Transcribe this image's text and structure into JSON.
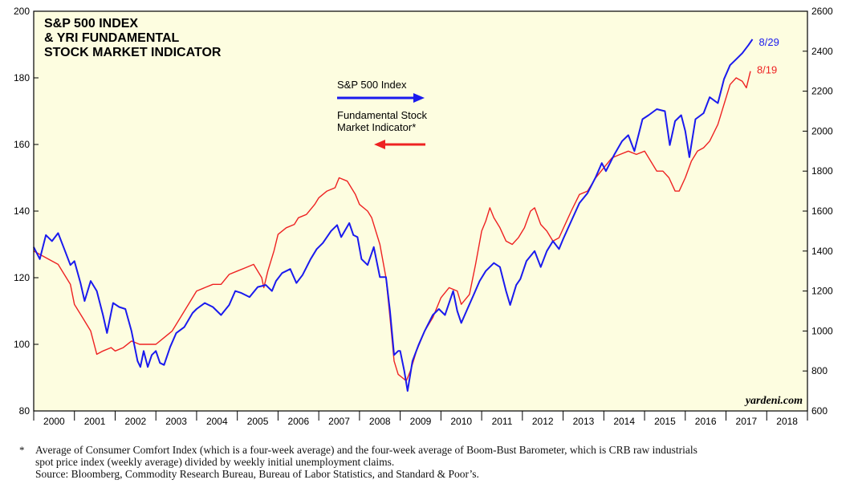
{
  "chart_data": {
    "type": "line",
    "title_lines": [
      "S&P 500 INDEX",
      "& YRI FUNDAMENTAL",
      "STOCK MARKET INDICATOR"
    ],
    "left_axis": {
      "ylim": [
        80,
        200
      ],
      "ticks": [
        80,
        100,
        120,
        140,
        160,
        180,
        200
      ]
    },
    "right_axis": {
      "ylim": [
        600,
        2600
      ],
      "ticks": [
        600,
        800,
        1000,
        1200,
        1400,
        1600,
        1800,
        2000,
        2200,
        2400,
        2600
      ]
    },
    "xlim": [
      2000,
      2019
    ],
    "x_tick_labels": [
      "2000",
      "2001",
      "2002",
      "2003",
      "2004",
      "2005",
      "2006",
      "2007",
      "2008",
      "2009",
      "2010",
      "2011",
      "2012",
      "2013",
      "2014",
      "2015",
      "2016",
      "2017",
      "2018"
    ],
    "legend": {
      "sp500_label": "S&P 500 Index",
      "fsmi_label_line1": "Fundamental Stock",
      "fsmi_label_line2": "Market Indicator*"
    },
    "watermark": "yardeni.com",
    "series": [
      {
        "name": "S&P 500 Index",
        "axis": "right",
        "color": "#1a1aee",
        "end_label": "8/29",
        "points": [
          [
            2000.0,
            1420
          ],
          [
            2000.15,
            1360
          ],
          [
            2000.3,
            1480
          ],
          [
            2000.45,
            1450
          ],
          [
            2000.6,
            1490
          ],
          [
            2000.75,
            1410
          ],
          [
            2000.9,
            1330
          ],
          [
            2001.0,
            1350
          ],
          [
            2001.15,
            1240
          ],
          [
            2001.25,
            1150
          ],
          [
            2001.4,
            1250
          ],
          [
            2001.55,
            1200
          ],
          [
            2001.7,
            1080
          ],
          [
            2001.8,
            990
          ],
          [
            2001.95,
            1140
          ],
          [
            2002.1,
            1120
          ],
          [
            2002.25,
            1110
          ],
          [
            2002.4,
            1000
          ],
          [
            2002.55,
            850
          ],
          [
            2002.62,
            820
          ],
          [
            2002.7,
            900
          ],
          [
            2002.8,
            820
          ],
          [
            2002.9,
            880
          ],
          [
            2003.0,
            900
          ],
          [
            2003.1,
            840
          ],
          [
            2003.2,
            830
          ],
          [
            2003.35,
            920
          ],
          [
            2003.5,
            990
          ],
          [
            2003.7,
            1020
          ],
          [
            2003.9,
            1090
          ],
          [
            2004.0,
            1110
          ],
          [
            2004.2,
            1140
          ],
          [
            2004.4,
            1120
          ],
          [
            2004.6,
            1080
          ],
          [
            2004.8,
            1130
          ],
          [
            2004.95,
            1200
          ],
          [
            2005.1,
            1190
          ],
          [
            2005.3,
            1170
          ],
          [
            2005.5,
            1220
          ],
          [
            2005.7,
            1230
          ],
          [
            2005.85,
            1200
          ],
          [
            2005.95,
            1250
          ],
          [
            2006.1,
            1290
          ],
          [
            2006.3,
            1310
          ],
          [
            2006.45,
            1240
          ],
          [
            2006.6,
            1280
          ],
          [
            2006.8,
            1360
          ],
          [
            2006.95,
            1410
          ],
          [
            2007.1,
            1440
          ],
          [
            2007.3,
            1500
          ],
          [
            2007.45,
            1530
          ],
          [
            2007.55,
            1470
          ],
          [
            2007.75,
            1540
          ],
          [
            2007.85,
            1480
          ],
          [
            2007.95,
            1470
          ],
          [
            2008.05,
            1360
          ],
          [
            2008.2,
            1330
          ],
          [
            2008.35,
            1420
          ],
          [
            2008.5,
            1270
          ],
          [
            2008.65,
            1270
          ],
          [
            2008.75,
            1100
          ],
          [
            2008.85,
            880
          ],
          [
            2008.95,
            900
          ],
          [
            2009.0,
            900
          ],
          [
            2009.1,
            800
          ],
          [
            2009.18,
            700
          ],
          [
            2009.3,
            850
          ],
          [
            2009.45,
            930
          ],
          [
            2009.6,
            1000
          ],
          [
            2009.8,
            1080
          ],
          [
            2009.95,
            1110
          ],
          [
            2010.1,
            1080
          ],
          [
            2010.3,
            1200
          ],
          [
            2010.4,
            1100
          ],
          [
            2010.5,
            1040
          ],
          [
            2010.65,
            1110
          ],
          [
            2010.8,
            1180
          ],
          [
            2010.95,
            1250
          ],
          [
            2011.1,
            1300
          ],
          [
            2011.3,
            1340
          ],
          [
            2011.45,
            1320
          ],
          [
            2011.6,
            1200
          ],
          [
            2011.7,
            1130
          ],
          [
            2011.85,
            1230
          ],
          [
            2011.95,
            1260
          ],
          [
            2012.1,
            1350
          ],
          [
            2012.3,
            1400
          ],
          [
            2012.45,
            1320
          ],
          [
            2012.6,
            1400
          ],
          [
            2012.75,
            1450
          ],
          [
            2012.9,
            1410
          ],
          [
            2013.0,
            1460
          ],
          [
            2013.2,
            1550
          ],
          [
            2013.4,
            1640
          ],
          [
            2013.6,
            1690
          ],
          [
            2013.8,
            1770
          ],
          [
            2013.95,
            1840
          ],
          [
            2014.05,
            1800
          ],
          [
            2014.25,
            1880
          ],
          [
            2014.45,
            1950
          ],
          [
            2014.6,
            1980
          ],
          [
            2014.75,
            1900
          ],
          [
            2014.95,
            2060
          ],
          [
            2015.1,
            2080
          ],
          [
            2015.3,
            2110
          ],
          [
            2015.5,
            2100
          ],
          [
            2015.62,
            1930
          ],
          [
            2015.75,
            2050
          ],
          [
            2015.9,
            2080
          ],
          [
            2016.0,
            2000
          ],
          [
            2016.1,
            1870
          ],
          [
            2016.25,
            2060
          ],
          [
            2016.45,
            2090
          ],
          [
            2016.6,
            2170
          ],
          [
            2016.8,
            2140
          ],
          [
            2016.95,
            2260
          ],
          [
            2017.1,
            2330
          ],
          [
            2017.25,
            2360
          ],
          [
            2017.4,
            2390
          ],
          [
            2017.55,
            2430
          ],
          [
            2017.65,
            2460
          ]
        ]
      },
      {
        "name": "Fundamental Stock Market Indicator",
        "axis": "left",
        "color": "#ee2222",
        "end_label": "8/19",
        "points": [
          [
            2000.0,
            128
          ],
          [
            2000.3,
            126
          ],
          [
            2000.6,
            124
          ],
          [
            2000.9,
            118
          ],
          [
            2001.0,
            112
          ],
          [
            2001.2,
            108
          ],
          [
            2001.4,
            104
          ],
          [
            2001.55,
            97
          ],
          [
            2001.7,
            98
          ],
          [
            2001.9,
            99
          ],
          [
            2002.0,
            98
          ],
          [
            2002.2,
            99
          ],
          [
            2002.4,
            101
          ],
          [
            2002.6,
            100
          ],
          [
            2002.8,
            100
          ],
          [
            2003.0,
            100
          ],
          [
            2003.2,
            102
          ],
          [
            2003.4,
            104
          ],
          [
            2003.6,
            108
          ],
          [
            2003.8,
            112
          ],
          [
            2004.0,
            116
          ],
          [
            2004.2,
            117
          ],
          [
            2004.4,
            118
          ],
          [
            2004.6,
            118
          ],
          [
            2004.8,
            121
          ],
          [
            2005.0,
            122
          ],
          [
            2005.2,
            123
          ],
          [
            2005.4,
            124
          ],
          [
            2005.5,
            122
          ],
          [
            2005.6,
            120
          ],
          [
            2005.65,
            117
          ],
          [
            2005.75,
            122
          ],
          [
            2005.9,
            128
          ],
          [
            2006.0,
            133
          ],
          [
            2006.2,
            135
          ],
          [
            2006.4,
            136
          ],
          [
            2006.5,
            138
          ],
          [
            2006.7,
            139
          ],
          [
            2006.9,
            142
          ],
          [
            2007.0,
            144
          ],
          [
            2007.2,
            146
          ],
          [
            2007.4,
            147
          ],
          [
            2007.5,
            150
          ],
          [
            2007.7,
            149
          ],
          [
            2007.9,
            145
          ],
          [
            2008.0,
            142
          ],
          [
            2008.2,
            140
          ],
          [
            2008.3,
            138
          ],
          [
            2008.5,
            130
          ],
          [
            2008.65,
            120
          ],
          [
            2008.75,
            108
          ],
          [
            2008.85,
            95
          ],
          [
            2008.95,
            91
          ],
          [
            2009.05,
            90
          ],
          [
            2009.15,
            89
          ],
          [
            2009.25,
            92
          ],
          [
            2009.4,
            98
          ],
          [
            2009.6,
            104
          ],
          [
            2009.8,
            108
          ],
          [
            2010.0,
            114
          ],
          [
            2010.2,
            117
          ],
          [
            2010.4,
            116
          ],
          [
            2010.5,
            112
          ],
          [
            2010.7,
            115
          ],
          [
            2010.85,
            124
          ],
          [
            2011.0,
            134
          ],
          [
            2011.1,
            137
          ],
          [
            2011.2,
            141
          ],
          [
            2011.3,
            138
          ],
          [
            2011.45,
            135
          ],
          [
            2011.6,
            131
          ],
          [
            2011.75,
            130
          ],
          [
            2011.9,
            132
          ],
          [
            2012.05,
            135
          ],
          [
            2012.2,
            140
          ],
          [
            2012.3,
            141
          ],
          [
            2012.45,
            136
          ],
          [
            2012.6,
            134
          ],
          [
            2012.75,
            131
          ],
          [
            2012.9,
            132
          ],
          [
            2013.05,
            136
          ],
          [
            2013.2,
            140
          ],
          [
            2013.4,
            145
          ],
          [
            2013.6,
            146
          ],
          [
            2013.8,
            150
          ],
          [
            2014.0,
            153
          ],
          [
            2014.2,
            156
          ],
          [
            2014.4,
            157
          ],
          [
            2014.6,
            158
          ],
          [
            2014.8,
            157
          ],
          [
            2015.0,
            158
          ],
          [
            2015.15,
            155
          ],
          [
            2015.3,
            152
          ],
          [
            2015.45,
            152
          ],
          [
            2015.6,
            150
          ],
          [
            2015.75,
            146
          ],
          [
            2015.85,
            146
          ],
          [
            2016.0,
            150
          ],
          [
            2016.15,
            155
          ],
          [
            2016.3,
            158
          ],
          [
            2016.45,
            159
          ],
          [
            2016.6,
            161
          ],
          [
            2016.8,
            166
          ],
          [
            2016.95,
            172
          ],
          [
            2017.1,
            178
          ],
          [
            2017.25,
            180
          ],
          [
            2017.4,
            179
          ],
          [
            2017.5,
            177
          ],
          [
            2017.6,
            182
          ]
        ]
      }
    ]
  },
  "footnote": {
    "star": "*",
    "line1": "Average of Consumer Comfort Index (which is a four-week average) and the four-week average of Boom-Bust Barometer, which is CRB raw industrials",
    "line2": "spot price index (weekly average) divided by weekly initial unemployment claims.",
    "source": "Source: Bloomberg, Commodity Research Bureau, Bureau of Labor Statistics, and Standard & Poor’s."
  }
}
